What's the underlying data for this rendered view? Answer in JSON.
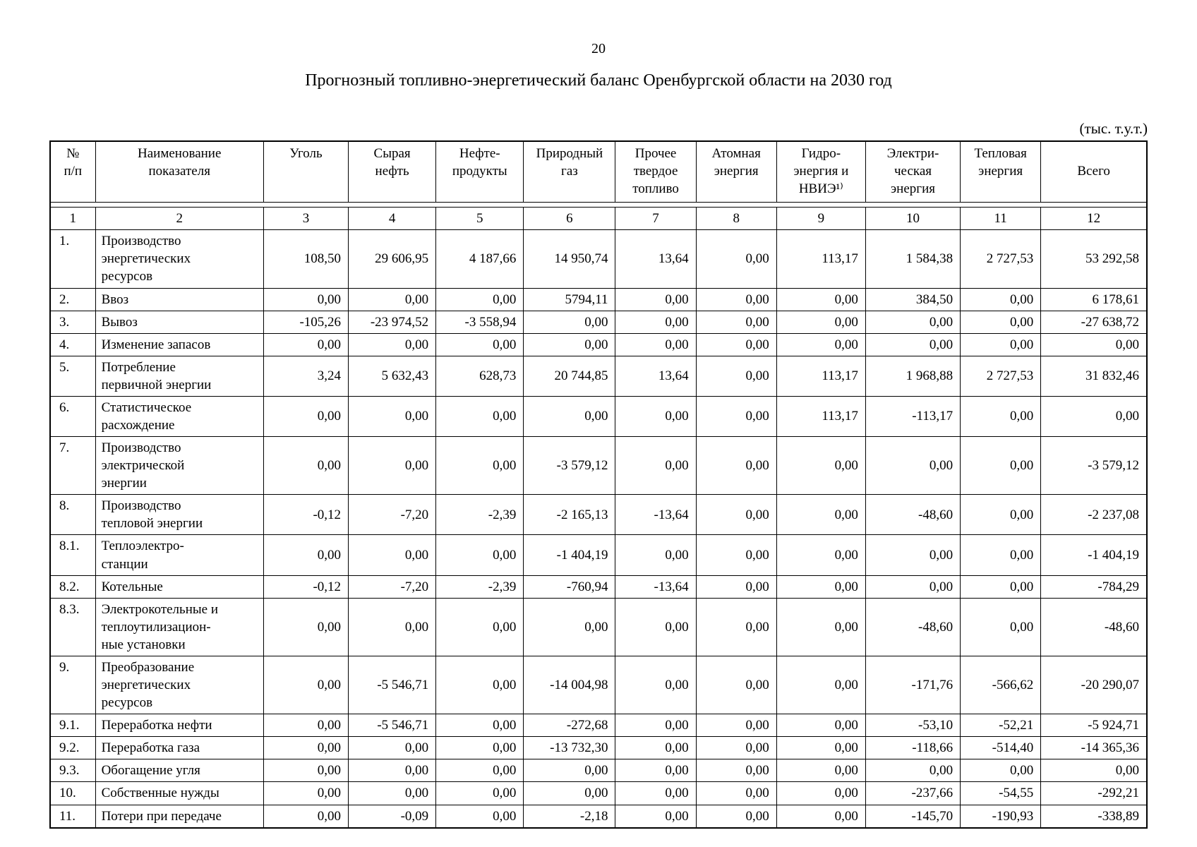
{
  "page": {
    "number": "20",
    "title": "Прогнозный топливно-энергетический баланс Оренбургской области на 2030 год",
    "units": "(тыс. т.у.т.)"
  },
  "table": {
    "headers": [
      "№\nп/п",
      "Наименование\nпоказателя",
      "Уголь",
      "Сырая\nнефть",
      "Нефте-\nпродукты",
      "Природный\nгаз",
      "Прочее\nтвердое\nтопливо",
      "Атомная\nэнергия",
      "Гидро-\nэнергия и\nНВИЭ¹⁾",
      "Электри-\nческая\nэнергия",
      "Тепловая\nэнергия",
      "Всего"
    ],
    "column_numbers": [
      "1",
      "2",
      "3",
      "4",
      "5",
      "6",
      "7",
      "8",
      "9",
      "10",
      "11",
      "12"
    ],
    "rows": [
      {
        "num": "1.",
        "name": "Производство\nэнергетических\nресурсов",
        "values": [
          "108,50",
          "29 606,95",
          "4 187,66",
          "14 950,74",
          "13,64",
          "0,00",
          "113,17",
          "1 584,38",
          "2 727,53",
          "53 292,58"
        ]
      },
      {
        "num": "2.",
        "name": "Ввоз",
        "values": [
          "0,00",
          "0,00",
          "0,00",
          "5794,11",
          "0,00",
          "0,00",
          "0,00",
          "384,50",
          "0,00",
          "6 178,61"
        ]
      },
      {
        "num": "3.",
        "name": "Вывоз",
        "values": [
          "-105,26",
          "-23 974,52",
          "-3 558,94",
          "0,00",
          "0,00",
          "0,00",
          "0,00",
          "0,00",
          "0,00",
          "-27 638,72"
        ]
      },
      {
        "num": "4.",
        "name": "Изменение запасов",
        "values": [
          "0,00",
          "0,00",
          "0,00",
          "0,00",
          "0,00",
          "0,00",
          "0,00",
          "0,00",
          "0,00",
          "0,00"
        ]
      },
      {
        "num": "5.",
        "name": "Потребление\nпервичной энергии",
        "values": [
          "3,24",
          "5 632,43",
          "628,73",
          "20 744,85",
          "13,64",
          "0,00",
          "113,17",
          "1 968,88",
          "2 727,53",
          "31 832,46"
        ]
      },
      {
        "num": "6.",
        "name": "Статистическое\nрасхождение",
        "values": [
          "0,00",
          "0,00",
          "0,00",
          "0,00",
          "0,00",
          "0,00",
          "113,17",
          "-113,17",
          "0,00",
          "0,00"
        ]
      },
      {
        "num": "7.",
        "name": "Производство\nэлектрической\nэнергии",
        "values": [
          "0,00",
          "0,00",
          "0,00",
          "-3 579,12",
          "0,00",
          "0,00",
          "0,00",
          "0,00",
          "0,00",
          "-3 579,12"
        ]
      },
      {
        "num": "8.",
        "name": "Производство\nтепловой энергии",
        "values": [
          "-0,12",
          "-7,20",
          "-2,39",
          "-2 165,13",
          "-13,64",
          "0,00",
          "0,00",
          "-48,60",
          "0,00",
          "-2 237,08"
        ]
      },
      {
        "num": "8.1.",
        "name": "Теплоэлектро-\nстанции",
        "values": [
          "0,00",
          "0,00",
          "0,00",
          "-1 404,19",
          "0,00",
          "0,00",
          "0,00",
          "0,00",
          "0,00",
          "-1 404,19"
        ]
      },
      {
        "num": "8.2.",
        "name": "Котельные",
        "values": [
          "-0,12",
          "-7,20",
          "-2,39",
          "-760,94",
          "-13,64",
          "0,00",
          "0,00",
          "0,00",
          "0,00",
          "-784,29"
        ]
      },
      {
        "num": "8.3.",
        "name": "Электрокотельные и\nтеплоутилизацион-\nные установки",
        "values": [
          "0,00",
          "0,00",
          "0,00",
          "0,00",
          "0,00",
          "0,00",
          "0,00",
          "-48,60",
          "0,00",
          "-48,60"
        ]
      },
      {
        "num": "9.",
        "name": "Преобразование\nэнергетических\nресурсов",
        "values": [
          "0,00",
          "-5 546,71",
          "0,00",
          "-14 004,98",
          "0,00",
          "0,00",
          "0,00",
          "-171,76",
          "-566,62",
          "-20 290,07"
        ]
      },
      {
        "num": "9.1.",
        "name": "Переработка нефти",
        "values": [
          "0,00",
          "-5 546,71",
          "0,00",
          "-272,68",
          "0,00",
          "0,00",
          "0,00",
          "-53,10",
          "-52,21",
          "-5 924,71"
        ]
      },
      {
        "num": "9.2.",
        "name": "Переработка газа",
        "values": [
          "0,00",
          "0,00",
          "0,00",
          "-13 732,30",
          "0,00",
          "0,00",
          "0,00",
          "-118,66",
          "-514,40",
          "-14 365,36"
        ]
      },
      {
        "num": "9.3.",
        "name": "Обогащение угля",
        "values": [
          "0,00",
          "0,00",
          "0,00",
          "0,00",
          "0,00",
          "0,00",
          "0,00",
          "0,00",
          "0,00",
          "0,00"
        ]
      },
      {
        "num": "10.",
        "name": "Собственные нужды",
        "values": [
          "0,00",
          "0,00",
          "0,00",
          "0,00",
          "0,00",
          "0,00",
          "0,00",
          "-237,66",
          "-54,55",
          "-292,21"
        ]
      },
      {
        "num": "11.",
        "name": "Потери при передаче",
        "values": [
          "0,00",
          "-0,09",
          "0,00",
          "-2,18",
          "0,00",
          "0,00",
          "0,00",
          "-145,70",
          "-190,93",
          "-338,89"
        ]
      }
    ]
  }
}
